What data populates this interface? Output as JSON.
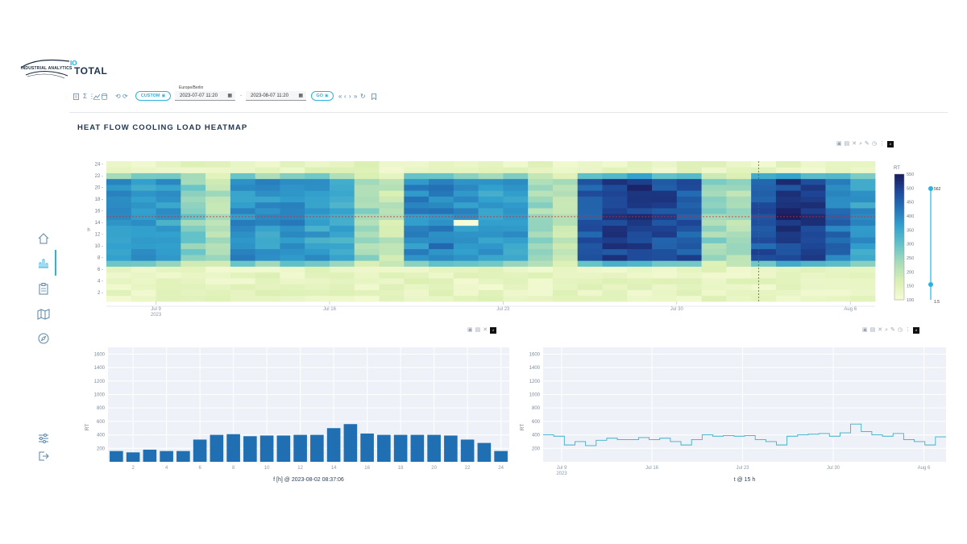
{
  "brand": {
    "logo_text": "INDUSTRIAL ANALYTICS",
    "io_mark": "IO",
    "product_name": "TOTAL"
  },
  "toolbar": {
    "timezone": "Europe/Berlin",
    "range_mode_label": "CUSTOM",
    "start_datetime": "2023-07-07 11:20",
    "end_datetime": "2023-08-07 11:20",
    "go_label": "GO",
    "separator": "-",
    "icons": [
      "document-icon",
      "sum-icon",
      "more-vert-icon",
      "line-chart-icon",
      "database-icon",
      "undo-icon",
      "redo-icon",
      "calendar-icon",
      "skip-back-icon",
      "step-back-icon",
      "step-forward-icon",
      "skip-forward-icon",
      "refresh-icon",
      "bookmark-icon"
    ]
  },
  "page": {
    "title": "HEAT FLOW  COOLING LOAD HEATMAP"
  },
  "sidebar": {
    "items": [
      {
        "name": "home-icon",
        "active": false
      },
      {
        "name": "bar-chart-icon",
        "active": true
      },
      {
        "name": "clipboard-icon",
        "active": false
      },
      {
        "name": "map-icon",
        "active": false
      },
      {
        "name": "compass-icon",
        "active": false
      },
      {
        "name": "sliders-icon",
        "active": false
      },
      {
        "name": "logout-icon",
        "active": false
      }
    ]
  },
  "colors": {
    "accent": "#2bb3e0",
    "bar_fill": "#1f6fb2",
    "line_stroke": "#3ab0c8",
    "crosshair": "#d62728",
    "plot_bg": "#eef2f8",
    "heat_low": "#f7fbd8",
    "heat_high": "#1a2a6c"
  },
  "chart_data": [
    {
      "type": "heatmap",
      "name": "cooling-load-heatmap",
      "x_ticks": [
        "Jul 9\n2023",
        "Jul 16",
        "Jul 23",
        "Jul 30",
        "Aug 6"
      ],
      "y_label": "h",
      "y_ticks": [
        "2",
        "4",
        "6",
        "8",
        "10",
        "12",
        "14",
        "16",
        "18",
        "20",
        "22",
        "24"
      ],
      "colorbar_title": "RT",
      "colorbar_ticks": [
        "100",
        "150",
        "200",
        "250",
        "300",
        "350",
        "400",
        "450",
        "500",
        "550"
      ],
      "zrange": [
        100,
        550
      ],
      "slider_max_label": "562",
      "slider_min_label": "1.5",
      "crosshair": {
        "date": "2023-08-02",
        "hour": 15
      },
      "days": 31,
      "hours": 24,
      "daily_intensity": [
        0.62,
        0.6,
        0.58,
        0.35,
        0.22,
        0.62,
        0.6,
        0.65,
        0.58,
        0.55,
        0.3,
        0.18,
        0.64,
        0.68,
        0.62,
        0.6,
        0.58,
        0.28,
        0.2,
        0.8,
        0.88,
        0.9,
        0.85,
        0.82,
        0.3,
        0.25,
        0.82,
        0.9,
        0.88,
        0.72,
        0.6
      ]
    },
    {
      "type": "bar",
      "name": "hourly-profile",
      "xlabel": "f [h] @ 2023-08-02 08:37:06",
      "ylabel": "RT",
      "ylim": [
        0,
        1700
      ],
      "y_ticks": [
        200,
        400,
        600,
        800,
        1000,
        1200,
        1400,
        1600
      ],
      "x_ticks": [
        2,
        4,
        6,
        8,
        10,
        12,
        14,
        16,
        18,
        20,
        22,
        24
      ],
      "categories": [
        1,
        2,
        3,
        4,
        5,
        6,
        7,
        8,
        9,
        10,
        11,
        12,
        13,
        14,
        15,
        16,
        17,
        18,
        19,
        20,
        21,
        22,
        23,
        24
      ],
      "values": [
        160,
        140,
        180,
        160,
        160,
        330,
        400,
        410,
        380,
        390,
        390,
        400,
        400,
        500,
        560,
        420,
        400,
        400,
        400,
        400,
        390,
        330,
        280,
        160
      ]
    },
    {
      "type": "line",
      "name": "hour-timeseries",
      "xlabel": "t @ 15 h",
      "ylabel": "RT",
      "ylim": [
        0,
        1700
      ],
      "y_ticks": [
        200,
        400,
        600,
        800,
        1000,
        1200,
        1400,
        1600
      ],
      "x_ticks": [
        "Jul 9\n2023",
        "Jul 16",
        "Jul 23",
        "Jul 30",
        "Aug 6"
      ],
      "values": [
        400,
        380,
        250,
        300,
        240,
        320,
        350,
        330,
        330,
        360,
        330,
        350,
        300,
        250,
        330,
        400,
        380,
        390,
        380,
        390,
        330,
        300,
        250,
        380,
        400,
        410,
        420,
        380,
        430,
        560,
        450,
        400,
        380,
        420,
        330,
        300,
        250,
        370
      ]
    }
  ]
}
